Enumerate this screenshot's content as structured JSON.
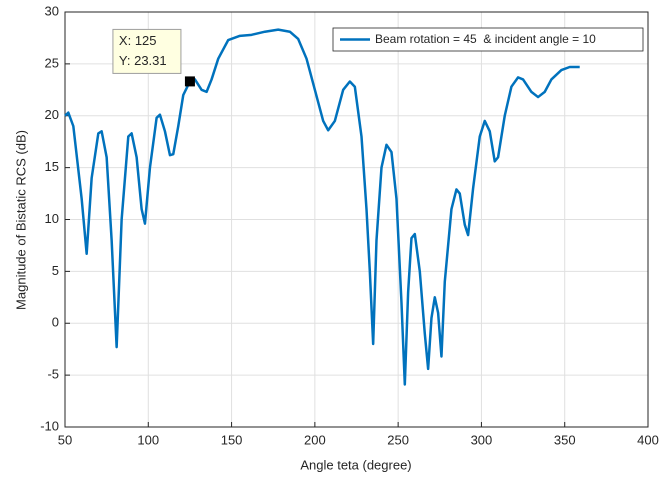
{
  "chart_data": {
    "type": "line",
    "xlabel": "Angle teta (degree)",
    "ylabel": "Magnitude of Bistatic RCS (dB)",
    "x": [
      50,
      52,
      55,
      60,
      63,
      66,
      70,
      72,
      75,
      78,
      81,
      84,
      88,
      90,
      93,
      96,
      98,
      101,
      105,
      107,
      110,
      113,
      115,
      118,
      121,
      125,
      128,
      132,
      135,
      138,
      142,
      148,
      155,
      162,
      170,
      178,
      185,
      190,
      195,
      200,
      205,
      208,
      212,
      217,
      221,
      224,
      228,
      231,
      233,
      235,
      237,
      240,
      243,
      246,
      249,
      252,
      254,
      256,
      258,
      260,
      263,
      266,
      268,
      270,
      272,
      274,
      276,
      278,
      282,
      285,
      287,
      290,
      292,
      295,
      299,
      302,
      305,
      308,
      310,
      314,
      318,
      322,
      325,
      330,
      334,
      338,
      342,
      348,
      353,
      359
    ],
    "series": [
      {
        "name": "Beam rotation = 45  & incident angle = 10",
        "color": "#0072bd",
        "values": [
          20,
          20.3,
          19,
          12,
          6.7,
          14,
          18.3,
          18.5,
          16,
          8,
          -2.3,
          10,
          18,
          18.3,
          16,
          11,
          9.6,
          15,
          19.8,
          20.1,
          18.5,
          16.2,
          16.3,
          19,
          22,
          23.31,
          23.5,
          22.5,
          22.3,
          23.5,
          25.5,
          27.3,
          27.7,
          27.8,
          28.1,
          28.3,
          28.1,
          27.4,
          25.5,
          22.5,
          19.5,
          18.6,
          19.5,
          22.5,
          23.3,
          22.8,
          18,
          11,
          5,
          -2,
          8,
          15,
          17.2,
          16.5,
          12,
          2,
          -5.9,
          3,
          8.2,
          8.6,
          5,
          -1,
          -4.4,
          0.5,
          2.5,
          1,
          -3.2,
          4,
          11,
          12.9,
          12.5,
          9.5,
          8.5,
          13,
          18,
          19.5,
          18.5,
          15.6,
          16,
          20,
          22.8,
          23.7,
          23.5,
          22.3,
          21.8,
          22.3,
          23.5,
          24.4,
          24.7,
          24.7
        ]
      }
    ],
    "xlim": [
      50,
      400
    ],
    "xticks": [
      50,
      100,
      150,
      200,
      250,
      300,
      350,
      400
    ],
    "ylim": [
      -10,
      30
    ],
    "yticks": [
      -10,
      -5,
      0,
      5,
      10,
      15,
      20,
      25,
      30
    ],
    "grid": true,
    "legend": "northeast",
    "datatip": {
      "x": 125,
      "y": 23.31,
      "x_text": "X: 125",
      "y_text": "Y: 23.31"
    }
  }
}
